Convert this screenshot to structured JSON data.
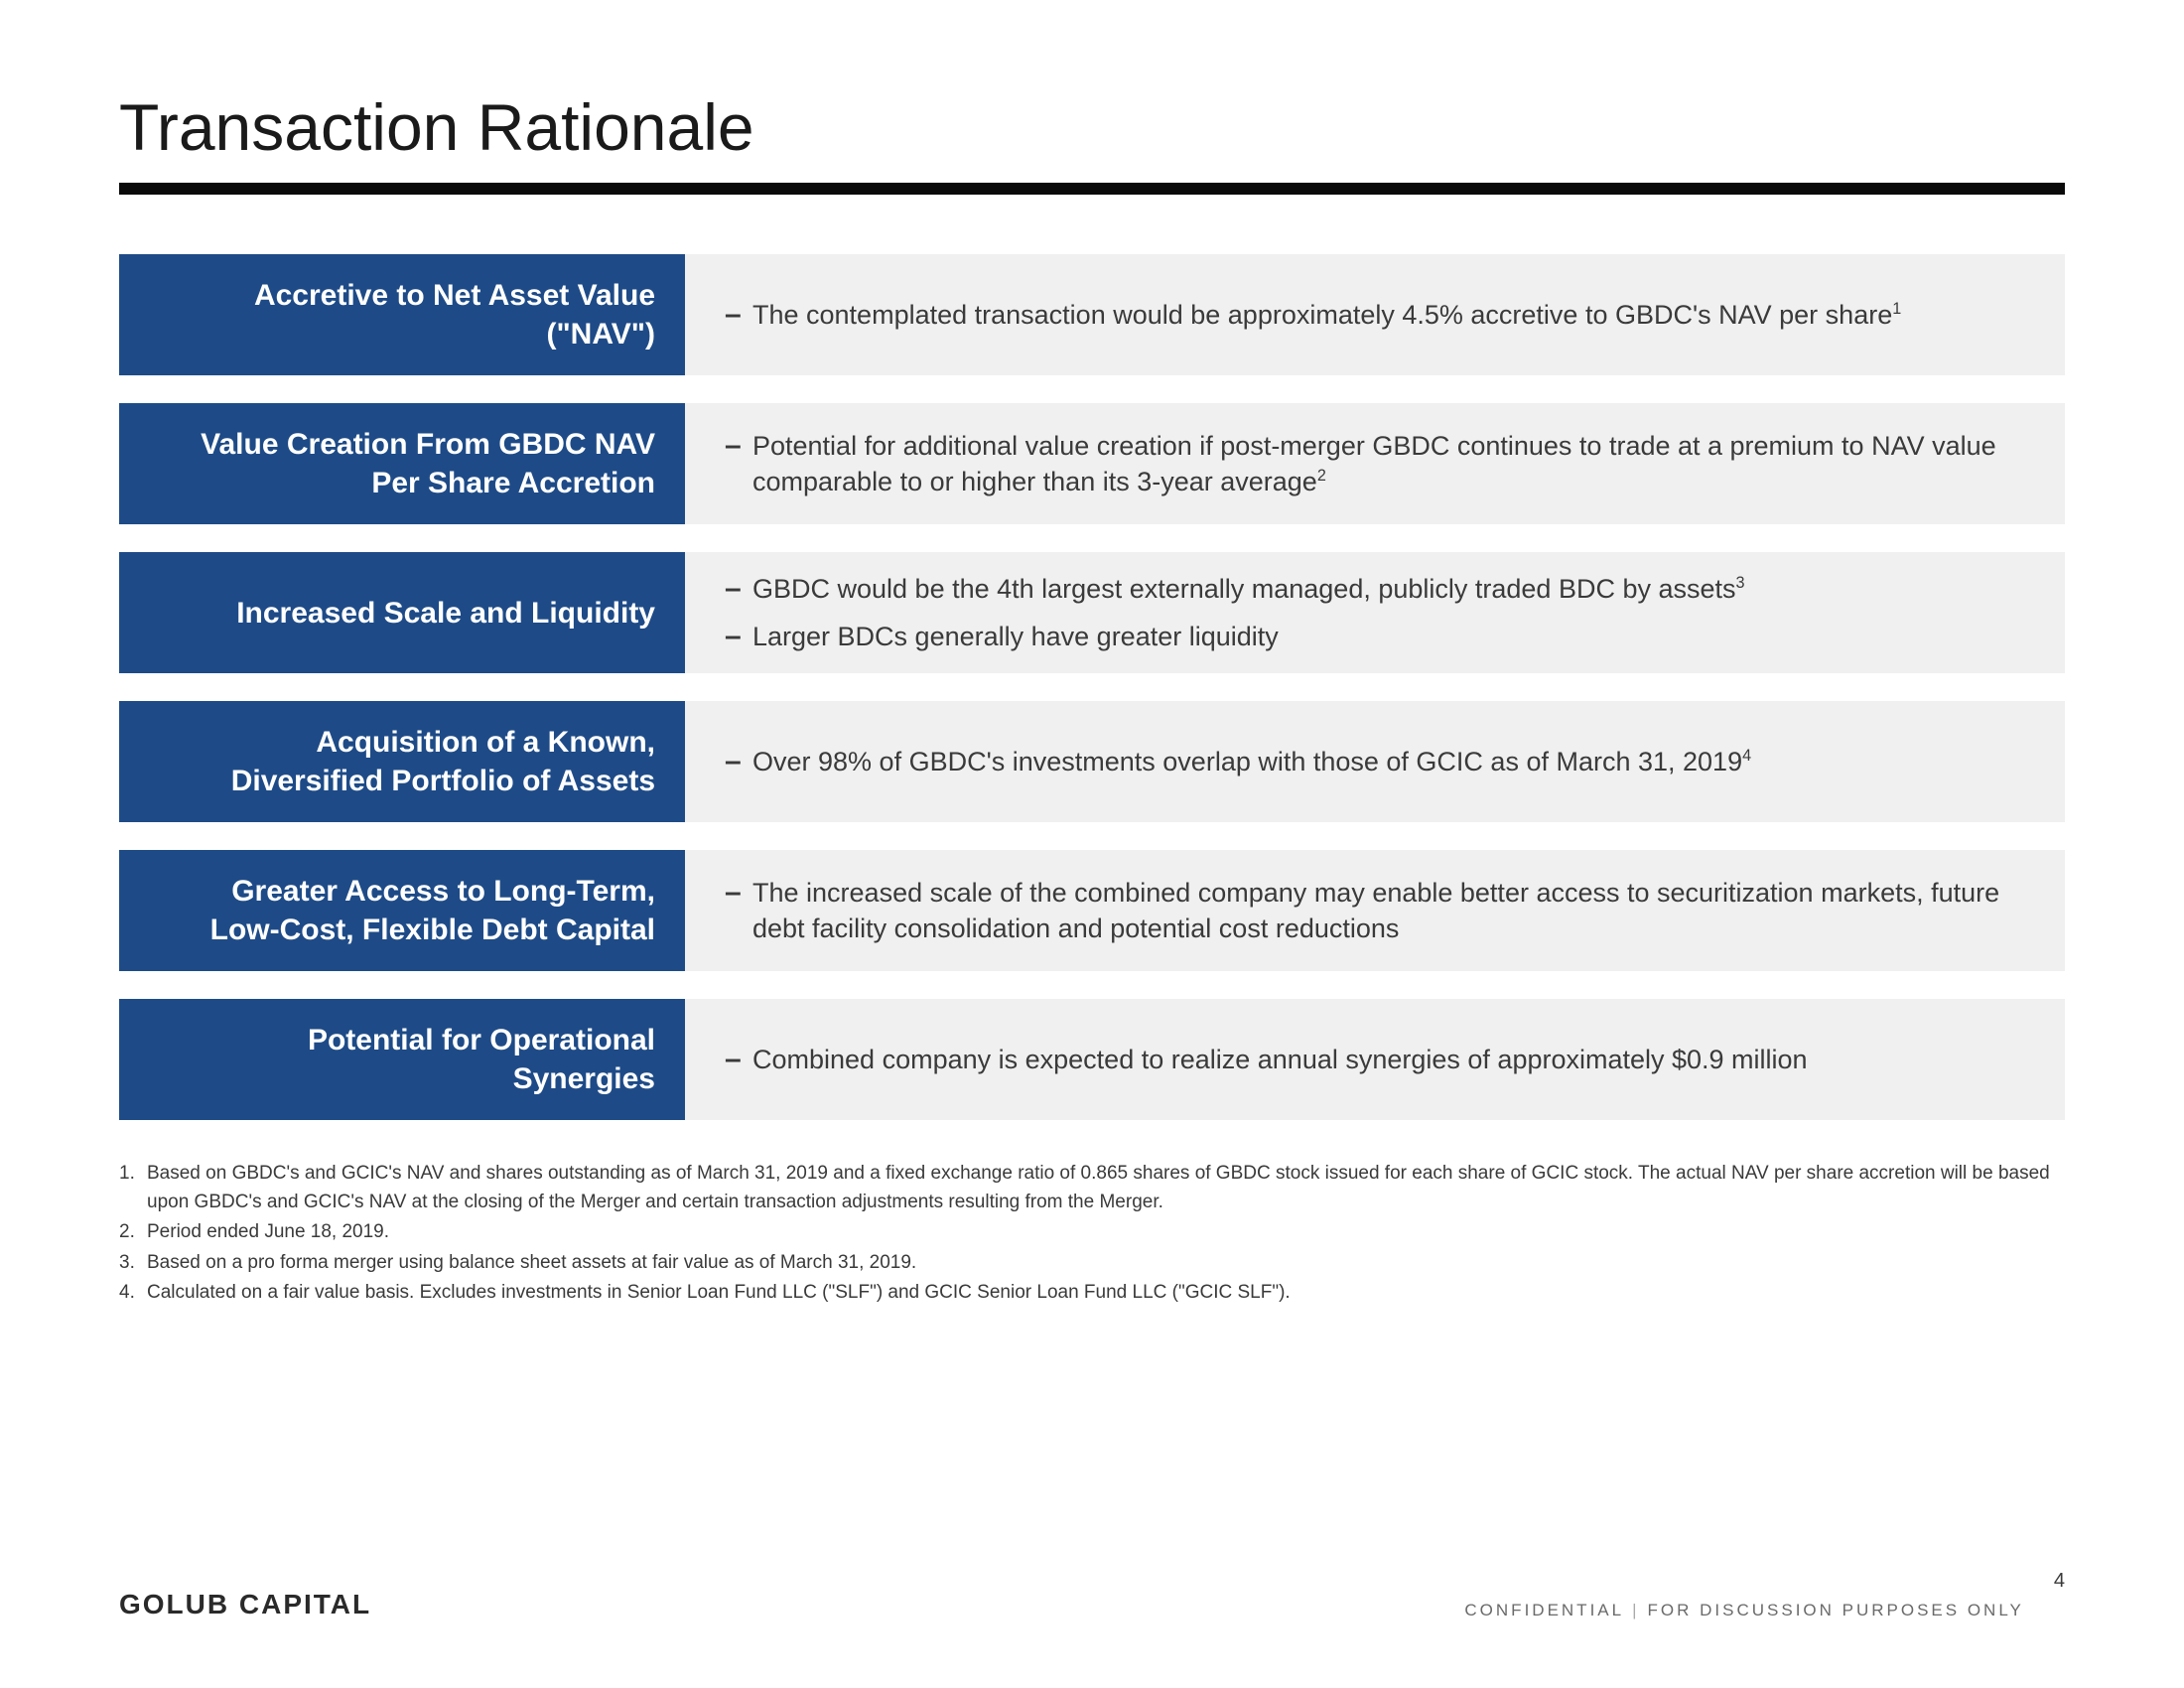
{
  "title": "Transaction Rationale",
  "colors": {
    "label_bg": "#1e4b87",
    "label_fg": "#ffffff",
    "row_bg": "#f0f0f0",
    "title_rule": "#0a0a0a",
    "body_text": "#3a3a3a"
  },
  "rows": [
    {
      "label": "Accretive to Net Asset Value (\"NAV\")",
      "bullets": [
        {
          "text": "The contemplated transaction would be approximately 4.5% accretive to GBDC's NAV per share",
          "sup": "1"
        }
      ]
    },
    {
      "label": "Value Creation From GBDC NAV Per Share Accretion",
      "bullets": [
        {
          "text": "Potential for additional value creation if post-merger GBDC continues to trade at a premium to NAV value comparable to or higher than its 3-year average",
          "sup": "2"
        }
      ]
    },
    {
      "label": "Increased Scale and Liquidity",
      "bullets": [
        {
          "text": "GBDC would be the 4th largest externally managed, publicly traded BDC by assets",
          "sup": "3"
        },
        {
          "text": "Larger BDCs generally have greater liquidity",
          "sup": ""
        }
      ]
    },
    {
      "label": "Acquisition of a Known, Diversified Portfolio of Assets",
      "bullets": [
        {
          "text": "Over 98% of GBDC's investments overlap with those of GCIC as of March 31, 2019",
          "sup": "4"
        }
      ]
    },
    {
      "label": "Greater Access to Long-Term, Low-Cost, Flexible Debt Capital",
      "bullets": [
        {
          "text": "The increased scale of the combined company may enable better access to securitization markets, future debt facility consolidation and potential cost reductions",
          "sup": ""
        }
      ]
    },
    {
      "label": "Potential for Operational Synergies",
      "bullets": [
        {
          "text": "Combined company is expected to realize annual synergies of approximately $0.9 million",
          "sup": ""
        }
      ]
    }
  ],
  "footnotes": [
    {
      "num": "1.",
      "text": "Based on GBDC's and GCIC's NAV and shares outstanding as of March 31, 2019 and a fixed exchange ratio of 0.865 shares of GBDC stock issued for each share of GCIC stock. The actual NAV per share accretion will be based upon GBDC's and GCIC's NAV at the closing of the Merger and certain transaction adjustments resulting from the Merger."
    },
    {
      "num": "2.",
      "text": "Period ended June 18, 2019."
    },
    {
      "num": "3.",
      "text": "Based on a pro forma merger using balance sheet assets at fair value as of March 31, 2019."
    },
    {
      "num": "4.",
      "text": "Calculated on a fair value basis. Excludes investments in Senior Loan Fund LLC (\"SLF\") and GCIC Senior Loan Fund LLC (\"GCIC SLF\")."
    }
  ],
  "footer": {
    "logo": "GOLUB CAPITAL",
    "confidential_left": "CONFIDENTIAL",
    "confidential_right": "FOR DISCUSSION PURPOSES ONLY",
    "page": "4"
  }
}
